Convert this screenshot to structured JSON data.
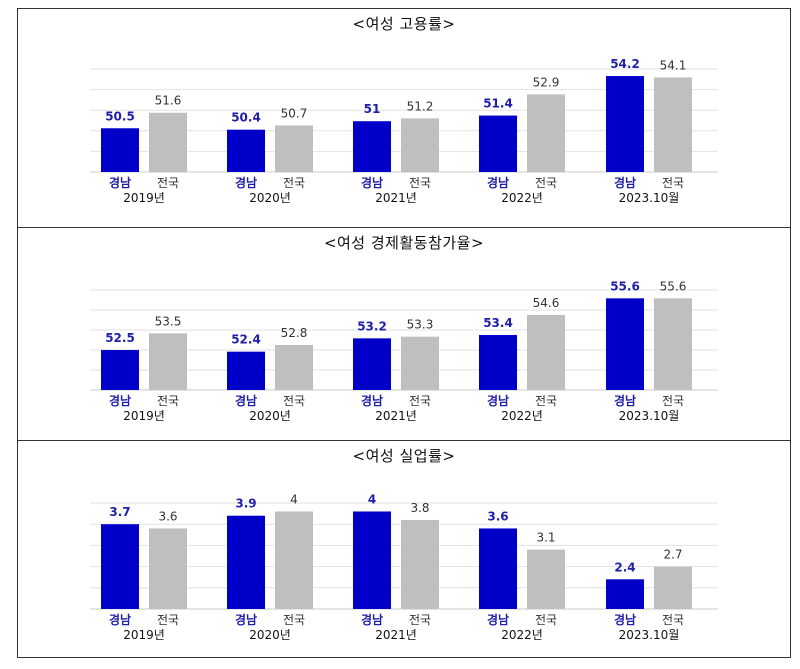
{
  "colors": {
    "gyeongnam": "#0000c8",
    "national": "#bfbfbf",
    "grid": "#e2e2e2",
    "axis": "#c8c8c8",
    "gyeongnam_label": "#1f1fa8",
    "national_label": "#333333"
  },
  "legend_labels": {
    "gyeongnam": "경남",
    "national": "전국"
  },
  "chart_data": [
    {
      "type": "bar",
      "title": "<여성 고용률>",
      "categories": [
        "2019년",
        "2020년",
        "2021년",
        "2022년",
        "2023.10월"
      ],
      "series": [
        {
          "name": "경남",
          "values": [
            50.5,
            50.4,
            51,
            51.4,
            54.2
          ],
          "labels": [
            "50.5",
            "50.4",
            "51",
            "51.4",
            "54.2"
          ]
        },
        {
          "name": "전국",
          "values": [
            51.6,
            50.7,
            51.2,
            52.9,
            54.1
          ],
          "labels": [
            "51.6",
            "50.7",
            "51.2",
            "52.9",
            "54.1"
          ]
        }
      ],
      "ylim": [
        47.4,
        54.7
      ],
      "grid": true
    },
    {
      "type": "bar",
      "title": "<여성 경제활동참가율>",
      "categories": [
        "2019년",
        "2020년",
        "2021년",
        "2022년",
        "2023.10월"
      ],
      "series": [
        {
          "name": "경남",
          "values": [
            52.5,
            52.4,
            53.2,
            53.4,
            55.6
          ],
          "labels": [
            "52.5",
            "52.4",
            "53.2",
            "53.4",
            "55.6"
          ]
        },
        {
          "name": "전국",
          "values": [
            53.5,
            52.8,
            53.3,
            54.6,
            55.6
          ],
          "labels": [
            "53.5",
            "52.8",
            "53.3",
            "54.6",
            "55.6"
          ]
        }
      ],
      "ylim": [
        50.1,
        56.1
      ],
      "grid": true
    },
    {
      "type": "bar",
      "title": "<여성 실업률>",
      "categories": [
        "2019년",
        "2020년",
        "2021년",
        "2022년",
        "2023.10월"
      ],
      "series": [
        {
          "name": "경남",
          "values": [
            3.7,
            3.9,
            4,
            3.6,
            2.4
          ],
          "labels": [
            "3.7",
            "3.9",
            "4",
            "3.6",
            "2.4"
          ]
        },
        {
          "name": "전국",
          "values": [
            3.6,
            4,
            3.8,
            3.1,
            2.7
          ],
          "labels": [
            "3.6",
            "4",
            "3.8",
            "3.1",
            "2.7"
          ]
        }
      ],
      "ylim": [
        1.7,
        4.2
      ],
      "grid": true
    }
  ]
}
